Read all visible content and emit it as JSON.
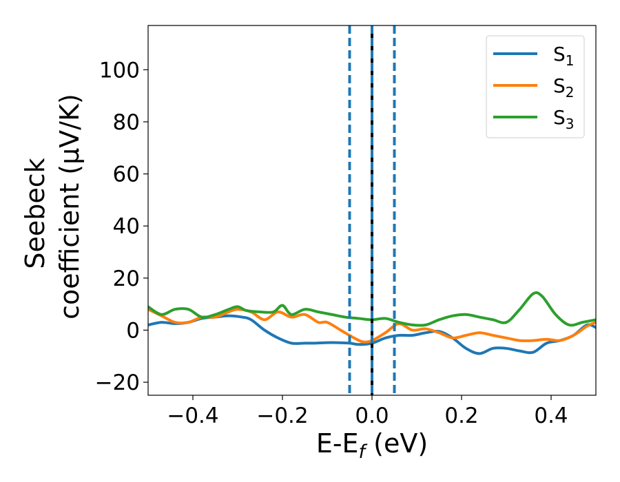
{
  "chart_data": {
    "type": "line",
    "xlabel_parts": {
      "base": "E-E",
      "sub": "f",
      "rest": " (eV)"
    },
    "ylabel_lines": [
      "Seebeck",
      "coefficient  (μV/K)"
    ],
    "xlim": [
      -0.5,
      0.5
    ],
    "ylim": [
      -25,
      117
    ],
    "xticks": [
      -0.4,
      -0.2,
      0.0,
      0.2,
      0.4
    ],
    "xtick_labels": [
      "−0.4",
      "−0.2",
      "0.0",
      "0.2",
      "0.4"
    ],
    "yticks": [
      -20,
      0,
      20,
      40,
      60,
      80,
      100
    ],
    "ytick_labels": [
      "−20",
      "0",
      "20",
      "40",
      "60",
      "80",
      "100"
    ],
    "grid": false,
    "legend_position": "top-right",
    "vertical_lines": [
      {
        "x": -0.05,
        "style": "dashed",
        "color": "#1f77b4"
      },
      {
        "x": 0.0,
        "style": "solid",
        "color": "#000000"
      },
      {
        "x": 0.0,
        "style": "dashed",
        "color": "#1f77b4"
      },
      {
        "x": 0.05,
        "style": "dashed",
        "color": "#1f77b4"
      }
    ],
    "series": [
      {
        "name": "S",
        "sub": "1",
        "color": "#1f77b4",
        "x": [
          -0.5,
          -0.47,
          -0.44,
          -0.41,
          -0.38,
          -0.35,
          -0.32,
          -0.29,
          -0.27,
          -0.24,
          -0.21,
          -0.18,
          -0.15,
          -0.13,
          -0.1,
          -0.08,
          -0.05,
          -0.03,
          0.0,
          0.03,
          0.06,
          0.09,
          0.12,
          0.15,
          0.18,
          0.21,
          0.24,
          0.27,
          0.3,
          0.33,
          0.36,
          0.39,
          0.42,
          0.45,
          0.48,
          0.5
        ],
        "y": [
          2,
          3,
          2.5,
          3,
          4.5,
          5,
          5.5,
          5,
          4,
          0,
          -3,
          -5,
          -5,
          -5,
          -4.8,
          -4.8,
          -5,
          -5.5,
          -5,
          -3,
          -2,
          -2,
          -1,
          -0.5,
          -3,
          -7,
          -9,
          -7,
          -7,
          -8,
          -8.5,
          -5,
          -4,
          -2,
          2,
          1
        ]
      },
      {
        "name": "S",
        "sub": "2",
        "color": "#ff7f0e",
        "x": [
          -0.5,
          -0.47,
          -0.44,
          -0.41,
          -0.38,
          -0.35,
          -0.32,
          -0.3,
          -0.27,
          -0.24,
          -0.21,
          -0.18,
          -0.15,
          -0.12,
          -0.1,
          -0.07,
          -0.04,
          -0.02,
          0.0,
          0.03,
          0.06,
          0.09,
          0.12,
          0.15,
          0.18,
          0.21,
          0.24,
          0.27,
          0.3,
          0.33,
          0.36,
          0.39,
          0.42,
          0.45,
          0.48,
          0.5
        ],
        "y": [
          8,
          5.5,
          3,
          3,
          5,
          5,
          7,
          8,
          7,
          4,
          7,
          5,
          6,
          3,
          3,
          0,
          -3,
          -4.5,
          -4,
          -1,
          2.5,
          0,
          0.5,
          -1,
          -3,
          -2,
          -1,
          -2,
          -3,
          -4,
          -4,
          -3.5,
          -4,
          -2,
          1.5,
          3
        ]
      },
      {
        "name": "S",
        "sub": "3",
        "color": "#2ca02c",
        "x": [
          -0.5,
          -0.47,
          -0.44,
          -0.41,
          -0.38,
          -0.35,
          -0.32,
          -0.3,
          -0.28,
          -0.25,
          -0.22,
          -0.2,
          -0.18,
          -0.15,
          -0.12,
          -0.09,
          -0.06,
          -0.03,
          0.0,
          0.03,
          0.06,
          0.09,
          0.12,
          0.15,
          0.18,
          0.21,
          0.24,
          0.27,
          0.3,
          0.33,
          0.36,
          0.38,
          0.41,
          0.44,
          0.47,
          0.5
        ],
        "y": [
          9,
          6,
          8,
          8,
          5,
          6,
          8,
          9,
          7.5,
          7,
          7,
          9.5,
          6,
          8,
          7,
          6,
          5,
          4.5,
          4,
          4.5,
          3,
          2,
          2,
          4,
          5.5,
          6,
          5,
          4,
          3,
          8,
          14,
          13,
          6,
          2,
          3,
          4
        ]
      }
    ]
  }
}
